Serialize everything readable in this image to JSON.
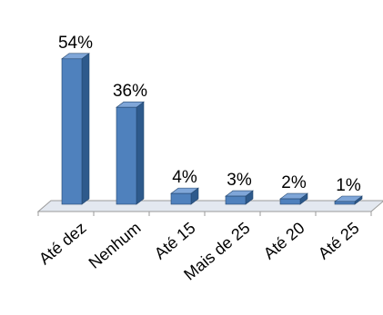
{
  "chart_data": {
    "type": "bar",
    "categories": [
      "Até dez",
      "Nenhum",
      "Até 15",
      "Mais de 25",
      "Até 20",
      "Até 25"
    ],
    "values": [
      54,
      36,
      4,
      3,
      2,
      1
    ],
    "data_labels": [
      "54%",
      "36%",
      "4%",
      "3%",
      "2%",
      "1%"
    ],
    "unit": "%",
    "ylim": [
      0,
      60
    ],
    "style": "3d-column",
    "grid": false,
    "legend": false,
    "colors": {
      "bar_front": "#4F81BD",
      "bar_side": "#2E5A8C",
      "bar_top": "#7FA6D8",
      "floor": "#E3E8F0",
      "axis": "#9A9A9A"
    }
  }
}
